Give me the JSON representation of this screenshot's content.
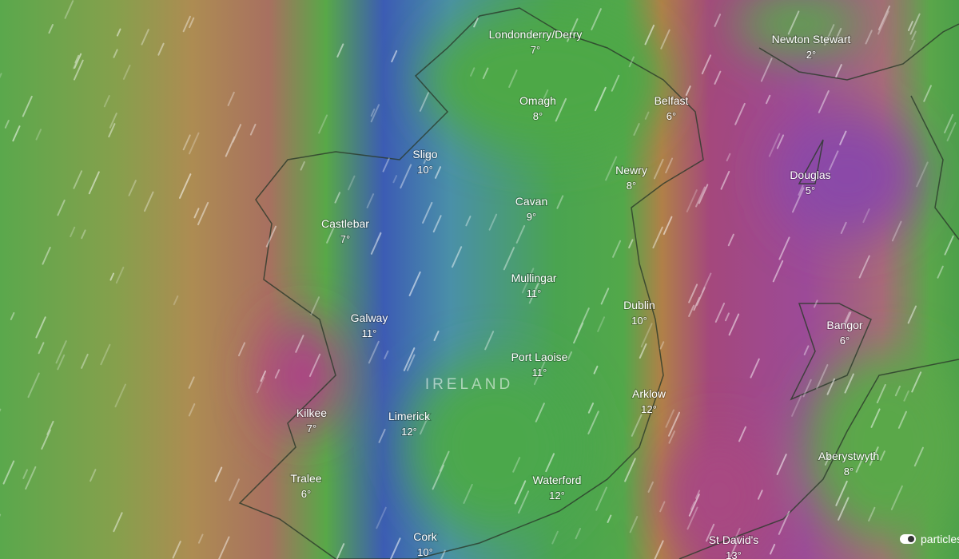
{
  "map": {
    "region_label": "IRELAND",
    "cities": [
      {
        "name": "Londonderry/Derry",
        "temp": "7°"
      },
      {
        "name": "Omagh",
        "temp": "8°"
      },
      {
        "name": "Belfast",
        "temp": "6°"
      },
      {
        "name": "Newton Stewart",
        "temp": "2°"
      },
      {
        "name": "Sligo",
        "temp": "10°"
      },
      {
        "name": "Newry",
        "temp": "8°"
      },
      {
        "name": "Douglas",
        "temp": "5°"
      },
      {
        "name": "Cavan",
        "temp": "9°"
      },
      {
        "name": "Castlebar",
        "temp": "7°"
      },
      {
        "name": "Mullingar",
        "temp": "11°"
      },
      {
        "name": "Dublin",
        "temp": "10°"
      },
      {
        "name": "Galway",
        "temp": "11°"
      },
      {
        "name": "Bangor",
        "temp": "6°"
      },
      {
        "name": "Port Laoise",
        "temp": "11°"
      },
      {
        "name": "Arklow",
        "temp": "12°"
      },
      {
        "name": "Kilkee",
        "temp": "7°"
      },
      {
        "name": "Limerick",
        "temp": "12°"
      },
      {
        "name": "Aberystwyth",
        "temp": "8°"
      },
      {
        "name": "Tralee",
        "temp": "6°"
      },
      {
        "name": "Waterford",
        "temp": "12°"
      },
      {
        "name": "Cork",
        "temp": "10°"
      },
      {
        "name": "St David's",
        "temp": "13°"
      }
    ],
    "toggle_label": "particles"
  }
}
